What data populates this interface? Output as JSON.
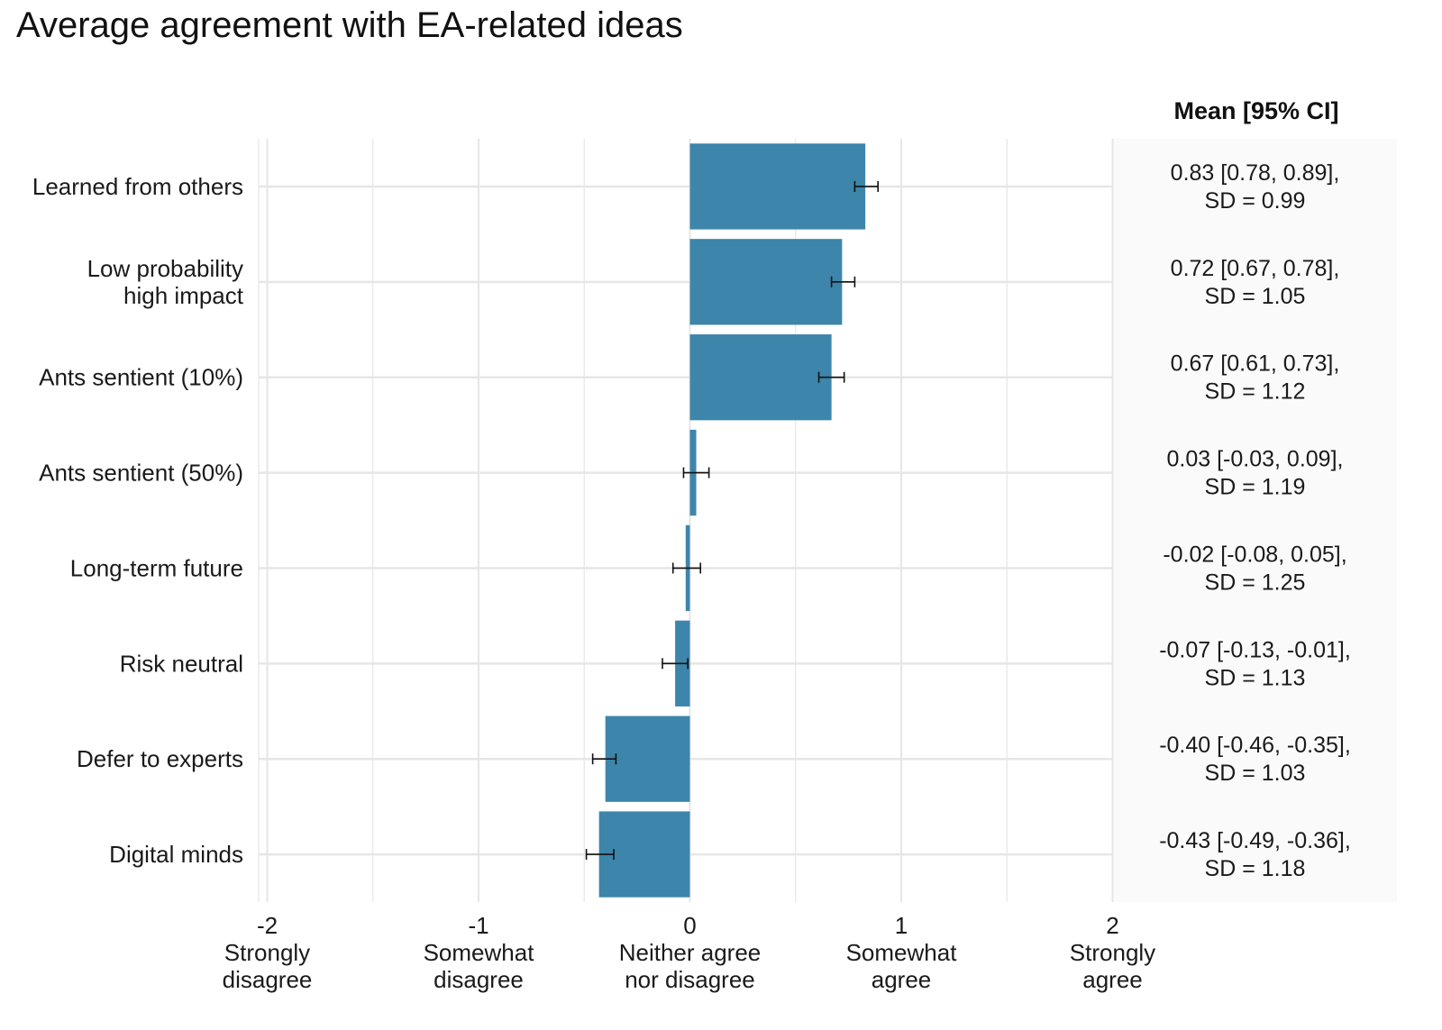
{
  "chart_data": {
    "type": "bar",
    "orientation": "horizontal",
    "title": "Average agreement with EA-related ideas",
    "categories": [
      [
        "Learned from others"
      ],
      [
        "Low probability",
        "high impact"
      ],
      [
        "Ants sentient (10%)"
      ],
      [
        "Ants sentient (50%)"
      ],
      [
        "Long-term future"
      ],
      [
        "Risk neutral"
      ],
      [
        "Defer to experts"
      ],
      [
        "Digital minds"
      ]
    ],
    "values": [
      0.83,
      0.72,
      0.67,
      0.03,
      -0.02,
      -0.07,
      -0.4,
      -0.43
    ],
    "ci_low": [
      0.78,
      0.67,
      0.61,
      -0.03,
      -0.08,
      -0.13,
      -0.46,
      -0.49
    ],
    "ci_high": [
      0.89,
      0.78,
      0.73,
      0.09,
      0.05,
      -0.01,
      -0.35,
      -0.36
    ],
    "stats_header": "Mean [95% CI]",
    "stats_labels": [
      [
        "0.83 [0.78, 0.89],",
        "SD = 0.99"
      ],
      [
        "0.72 [0.67, 0.78],",
        "SD = 1.05"
      ],
      [
        "0.67 [0.61, 0.73],",
        "SD = 1.12"
      ],
      [
        "0.03 [-0.03, 0.09],",
        "SD = 1.19"
      ],
      [
        "-0.02 [-0.08, 0.05],",
        "SD = 1.25"
      ],
      [
        "-0.07 [-0.13, -0.01],",
        "SD = 1.13"
      ],
      [
        "-0.40 [-0.46, -0.35],",
        "SD = 1.03"
      ],
      [
        "-0.43 [-0.49, -0.36],",
        "SD = 1.18"
      ]
    ],
    "xlim": [
      -2.05,
      2.0
    ],
    "x_ticks": [
      -2,
      -1,
      0,
      1,
      2
    ],
    "x_tick_labels": [
      [
        "-2",
        "Strongly",
        "disagree"
      ],
      [
        "-1",
        "Somewhat",
        "disagree"
      ],
      [
        "0",
        "Neither agree",
        "nor disagree"
      ],
      [
        "1",
        "Somewhat",
        "agree"
      ],
      [
        "2",
        "Strongly",
        "agree"
      ]
    ],
    "xlabel": "",
    "ylabel": "",
    "grid": true,
    "bar_color": "#3d85aa",
    "panel_color": "#fafafa",
    "grid_color": "#e6e6e6"
  }
}
